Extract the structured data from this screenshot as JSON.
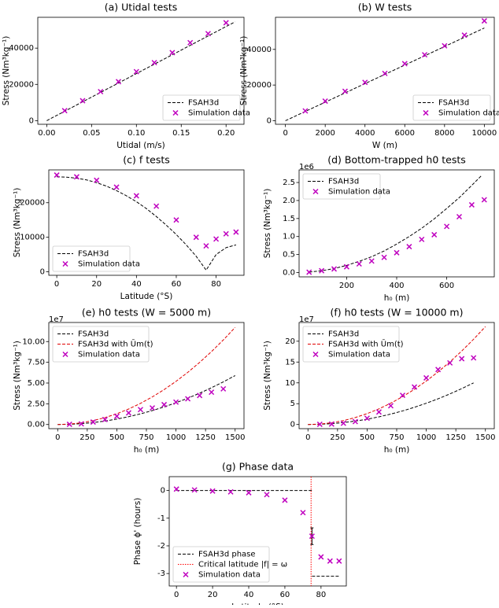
{
  "chart_data": [
    {
      "type": "line",
      "title": "(a) Utidal tests",
      "xlabel": "Utidal (m/s)",
      "ylabel": "Stress (Nm³kg⁻¹)",
      "xlim": [
        -0.01,
        0.22
      ],
      "ylim": [
        -2000,
        57000
      ],
      "xticks": [
        {
          "value": 0,
          "label": "0.00"
        },
        0.05,
        {
          "value": 0.1,
          "label": "0.10"
        },
        0.15,
        {
          "value": 0.2,
          "label": "0.20"
        }
      ],
      "yticks": [
        0,
        20000,
        40000
      ],
      "legend": "lower right",
      "series": [
        {
          "name": "FSAH3d",
          "color": "#000000",
          "style": "dashed",
          "x": [
            0,
            0.21
          ],
          "values": [
            0,
            54500
          ]
        },
        {
          "name": "Simulation data",
          "color": "#bf00bf",
          "style": "marker",
          "x": [
            0.02,
            0.04,
            0.06,
            0.08,
            0.1,
            0.12,
            0.14,
            0.16,
            0.18,
            0.2
          ],
          "values": [
            5500,
            11000,
            16000,
            21500,
            27000,
            32000,
            37500,
            43000,
            48000,
            54000
          ]
        }
      ]
    },
    {
      "type": "line",
      "title": "(b) W tests",
      "xlabel": "W (m)",
      "ylabel": "Stress (Nm³kg⁻¹)",
      "xlim": [
        -500,
        10500
      ],
      "ylim": [
        -2000,
        58000
      ],
      "xticks": [
        0,
        2000,
        4000,
        6000,
        8000,
        10000
      ],
      "yticks": [
        0,
        20000,
        40000
      ],
      "legend": "lower right",
      "series": [
        {
          "name": "FSAH3d",
          "color": "#000000",
          "style": "dashed",
          "x": [
            0,
            10000
          ],
          "values": [
            0,
            52000
          ]
        },
        {
          "name": "Simulation data",
          "color": "#bf00bf",
          "style": "marker",
          "x": [
            1000,
            2000,
            3000,
            4000,
            5000,
            6000,
            7000,
            8000,
            9000,
            10000
          ],
          "values": [
            5500,
            11000,
            16500,
            21500,
            26500,
            32000,
            37000,
            42000,
            48000,
            56000
          ]
        }
      ]
    },
    {
      "type": "line",
      "title": "(c) f tests",
      "xlabel": "Latitude (°S)",
      "ylabel": "Stress (Nm³kg⁻¹)",
      "xlim": [
        -4,
        94
      ],
      "ylim": [
        -1000,
        29500
      ],
      "xticks": [
        0,
        20,
        40,
        60,
        80
      ],
      "yticks": [
        0,
        10000,
        20000
      ],
      "legend": "lower left",
      "series": [
        {
          "name": "FSAH3d",
          "color": "#000000",
          "style": "dashed",
          "x": [
            0,
            5,
            10,
            15,
            20,
            25,
            30,
            35,
            40,
            45,
            50,
            55,
            60,
            65,
            70,
            75,
            80,
            85,
            90
          ],
          "values": [
            27500,
            27400,
            27100,
            26600,
            25800,
            24800,
            23500,
            22000,
            20300,
            18300,
            16000,
            13500,
            10800,
            7800,
            4500,
            500,
            5000,
            7000,
            7800
          ]
        },
        {
          "name": "Simulation data",
          "color": "#bf00bf",
          "style": "marker",
          "x": [
            0,
            10,
            20,
            30,
            40,
            50,
            60,
            70,
            75,
            80,
            85,
            90
          ],
          "values": [
            28000,
            27500,
            26500,
            24500,
            22000,
            19000,
            15000,
            10000,
            7500,
            9500,
            11000,
            11500
          ]
        }
      ]
    },
    {
      "type": "line",
      "title": "(d) Bottom-trapped h0 tests",
      "xlabel": "h₀ (m)",
      "ylabel": "Stress (Nm³kg⁻¹)",
      "yoffset": "1e6",
      "xlim": [
        10,
        790
      ],
      "ylim": [
        -0.12,
        2.85
      ],
      "xticks": [
        200,
        400,
        600
      ],
      "yticks": [
        {
          "value": 0,
          "label": "0.0"
        },
        0.5,
        {
          "value": 1,
          "label": "1.0"
        },
        1.5,
        {
          "value": 2,
          "label": "2.0"
        },
        2.5
      ],
      "legend": "upper left",
      "series": [
        {
          "name": "FSAH3d",
          "color": "#000000",
          "style": "dashed",
          "x": [
            50,
            100,
            150,
            200,
            250,
            300,
            350,
            400,
            450,
            500,
            550,
            600,
            650,
            700,
            740
          ],
          "values": [
            0.012,
            0.05,
            0.11,
            0.2,
            0.31,
            0.44,
            0.6,
            0.79,
            1.0,
            1.23,
            1.49,
            1.78,
            2.08,
            2.42,
            2.7
          ]
        },
        {
          "name": "Simulation data",
          "color": "#bf00bf",
          "style": "marker",
          "x": [
            50,
            100,
            150,
            200,
            250,
            300,
            350,
            400,
            450,
            500,
            550,
            600,
            650,
            700,
            750
          ],
          "values": [
            0.01,
            0.05,
            0.1,
            0.16,
            0.24,
            0.32,
            0.42,
            0.55,
            0.72,
            0.92,
            1.05,
            1.28,
            1.55,
            1.88,
            2.02
          ]
        }
      ]
    },
    {
      "type": "line",
      "title": "(e) h0 tests (W = 5000 m)",
      "xlabel": "h₀ (m)",
      "ylabel": "Stress (Nm³kg⁻¹)",
      "yoffset": "1e7",
      "xlim": [
        -75,
        1575
      ],
      "ylim": [
        -0.5,
        12.3
      ],
      "xticks": [
        0,
        250,
        500,
        750,
        1000,
        1250,
        1500
      ],
      "yticks": [
        {
          "value": 0,
          "label": "0.00"
        },
        {
          "value": 2.5,
          "label": "2.50"
        },
        {
          "value": 5,
          "label": "5.00"
        },
        {
          "value": 7.5,
          "label": "7.50"
        },
        {
          "value": 10,
          "label": "10.00"
        }
      ],
      "legend": "upper left",
      "series": [
        {
          "name": "FSAH3d",
          "color": "#000000",
          "style": "dashed",
          "x": [
            0,
            100,
            200,
            300,
            400,
            500,
            600,
            700,
            800,
            900,
            1000,
            1100,
            1200,
            1300,
            1400,
            1500
          ],
          "values": [
            0,
            0.026,
            0.105,
            0.236,
            0.42,
            0.656,
            0.944,
            1.285,
            1.678,
            2.124,
            2.622,
            3.173,
            3.776,
            4.432,
            5.14,
            5.9
          ]
        },
        {
          "name": "FSAH3d with Ūm(t)",
          "color": "#e00000",
          "style": "dashed",
          "x": [
            0,
            100,
            200,
            300,
            400,
            500,
            600,
            700,
            800,
            900,
            1000,
            1100,
            1200,
            1300,
            1400,
            1500
          ],
          "values": [
            0,
            0.052,
            0.208,
            0.468,
            0.832,
            1.3,
            1.872,
            2.548,
            3.328,
            4.212,
            5.2,
            6.292,
            7.488,
            8.788,
            10.192,
            11.7
          ]
        },
        {
          "name": "Simulation data",
          "color": "#bf00bf",
          "style": "marker",
          "x": [
            100,
            200,
            300,
            400,
            500,
            600,
            700,
            800,
            900,
            1000,
            1100,
            1200,
            1300,
            1400
          ],
          "values": [
            0.03,
            0.08,
            0.3,
            0.6,
            1.0,
            1.4,
            1.8,
            2.0,
            2.4,
            2.7,
            3.1,
            3.5,
            3.9,
            4.3
          ]
        }
      ]
    },
    {
      "type": "line",
      "title": "(f) h0 tests (W = 10000 m)",
      "xlabel": "h₀ (m)",
      "ylabel": "Stress (Nm³kg⁻¹)",
      "yoffset": "1e7",
      "xlim": [
        -75,
        1575
      ],
      "ylim": [
        -1,
        24.5
      ],
      "xticks": [
        0,
        250,
        500,
        750,
        1000,
        1250,
        1500
      ],
      "yticks": [
        0,
        5,
        10,
        15,
        20
      ],
      "legend": "upper left",
      "series": [
        {
          "name": "FSAH3d",
          "color": "#000000",
          "style": "dashed",
          "x": [
            0,
            100,
            200,
            300,
            400,
            500,
            600,
            700,
            800,
            900,
            1000,
            1100,
            1200,
            1300,
            1400
          ],
          "values": [
            0,
            0.051,
            0.204,
            0.459,
            0.816,
            1.276,
            1.837,
            2.5,
            3.265,
            4.133,
            5.102,
            6.173,
            7.347,
            8.622,
            10.0
          ]
        },
        {
          "name": "FSAH3d with Ūm(t)",
          "color": "#e00000",
          "style": "dashed",
          "x": [
            0,
            100,
            200,
            300,
            400,
            500,
            600,
            700,
            800,
            900,
            1000,
            1100,
            1200,
            1300,
            1400,
            1500
          ],
          "values": [
            0,
            0.104,
            0.418,
            0.94,
            1.671,
            2.611,
            3.76,
            5.118,
            6.684,
            8.46,
            10.444,
            12.637,
            15.04,
            17.651,
            20.471,
            23.5
          ]
        },
        {
          "name": "Simulation data",
          "color": "#bf00bf",
          "style": "marker",
          "x": [
            100,
            200,
            300,
            400,
            500,
            600,
            700,
            800,
            900,
            1000,
            1100,
            1200,
            1300,
            1400
          ],
          "values": [
            0.05,
            0.1,
            0.3,
            0.7,
            1.5,
            3.0,
            4.5,
            7.0,
            9.0,
            11.2,
            13.2,
            14.8,
            15.8,
            16.0
          ]
        }
      ]
    },
    {
      "type": "line",
      "title": "(g) Phase data",
      "xlabel": "Latitude (°S)",
      "ylabel": "Phase ϕ' (hours)",
      "xlim": [
        -4,
        94
      ],
      "ylim": [
        -3.45,
        0.5
      ],
      "xticks": [
        0,
        20,
        40,
        60,
        80
      ],
      "yticks": [
        0,
        -1,
        -2,
        -3
      ],
      "legend": "lower left",
      "series": [
        {
          "name": "FSAH3d phase",
          "color": "#000000",
          "style": "dashed",
          "x": [
            0,
            75,
            null,
            75,
            90
          ],
          "values": [
            0,
            0,
            null,
            -3.1,
            -3.1
          ]
        },
        {
          "name": "Critical latitude |f| = ω",
          "color": "#ff0000",
          "style": "dotted",
          "vline": 74.5
        },
        {
          "name": "Simulation data",
          "color": "#bf00bf",
          "style": "marker",
          "x": [
            0,
            10,
            20,
            30,
            40,
            50,
            60,
            70,
            75,
            80,
            85,
            90
          ],
          "values": [
            0.05,
            0.02,
            -0.02,
            -0.05,
            -0.08,
            -0.15,
            -0.35,
            -0.8,
            -1.65,
            -2.4,
            -2.55,
            -2.55
          ],
          "errors": [
            null,
            null,
            null,
            null,
            null,
            null,
            null,
            null,
            0.3,
            null,
            null,
            null
          ]
        }
      ]
    }
  ]
}
